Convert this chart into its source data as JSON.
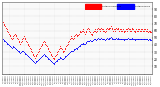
{
  "title": "",
  "red_color": "#ff0000",
  "blue_color": "#0000ff",
  "background": "#ffffff",
  "fig_bg": "#ffffff",
  "border_color": "#888888",
  "n_points": 200,
  "humidity_values": [
    72,
    70,
    68,
    66,
    64,
    62,
    60,
    58,
    56,
    54,
    52,
    50,
    48,
    50,
    52,
    54,
    56,
    54,
    52,
    50,
    48,
    46,
    44,
    42,
    44,
    46,
    48,
    50,
    52,
    50,
    48,
    46,
    44,
    42,
    40,
    38,
    36,
    34,
    32,
    30,
    28,
    26,
    24,
    22,
    24,
    26,
    28,
    30,
    32,
    34,
    36,
    38,
    40,
    42,
    44,
    46,
    44,
    42,
    40,
    38,
    36,
    34,
    32,
    30,
    28,
    26,
    24,
    22,
    20,
    22,
    24,
    26,
    28,
    30,
    32,
    34,
    36,
    38,
    36,
    34,
    32,
    30,
    32,
    34,
    36,
    38,
    40,
    42,
    44,
    46,
    48,
    50,
    52,
    50,
    48,
    50,
    52,
    54,
    56,
    54,
    52,
    54,
    56,
    58,
    60,
    58,
    60,
    62,
    60,
    58,
    56,
    58,
    60,
    62,
    64,
    62,
    60,
    58,
    56,
    54,
    56,
    58,
    60,
    62,
    60,
    58,
    60,
    62,
    64,
    62,
    60,
    62,
    64,
    62,
    60,
    62,
    60,
    58,
    60,
    62,
    64,
    62,
    64,
    62,
    64,
    66,
    64,
    62,
    60,
    62,
    60,
    62,
    64,
    62,
    64,
    62,
    60,
    62,
    60,
    62,
    60,
    62,
    60,
    58,
    60,
    62,
    60,
    62,
    64,
    62,
    60,
    62,
    60,
    62,
    64,
    62,
    60,
    58,
    60,
    62,
    60,
    62,
    60,
    62,
    60,
    62,
    60,
    62,
    60,
    62,
    60,
    62,
    60,
    62,
    60,
    58,
    60,
    58,
    60,
    58
  ],
  "temp_values": [
    48,
    47,
    46,
    45,
    44,
    43,
    42,
    41,
    40,
    39,
    38,
    37,
    36,
    37,
    38,
    37,
    36,
    35,
    34,
    33,
    32,
    31,
    30,
    29,
    30,
    31,
    32,
    31,
    30,
    29,
    28,
    27,
    26,
    25,
    24,
    23,
    22,
    21,
    20,
    19,
    18,
    17,
    16,
    15,
    16,
    17,
    18,
    19,
    20,
    21,
    22,
    23,
    24,
    25,
    26,
    27,
    26,
    25,
    24,
    23,
    22,
    21,
    20,
    19,
    18,
    17,
    16,
    15,
    14,
    15,
    16,
    17,
    18,
    19,
    20,
    21,
    22,
    23,
    22,
    21,
    20,
    21,
    22,
    23,
    24,
    25,
    26,
    27,
    28,
    29,
    30,
    31,
    32,
    31,
    32,
    33,
    34,
    35,
    36,
    35,
    36,
    37,
    38,
    39,
    40,
    41,
    42,
    43,
    42,
    41,
    42,
    43,
    44,
    45,
    46,
    45,
    46,
    47,
    46,
    45,
    46,
    47,
    48,
    49,
    48,
    47,
    48,
    49,
    50,
    49,
    48,
    49,
    50,
    49,
    48,
    49,
    48,
    47,
    48,
    49,
    50,
    49,
    50,
    49,
    50,
    51,
    50,
    49,
    48,
    49,
    48,
    49,
    50,
    49,
    50,
    49,
    48,
    49,
    48,
    49,
    48,
    49,
    48,
    47,
    48,
    49,
    48,
    49,
    50,
    49,
    48,
    49,
    48,
    49,
    50,
    49,
    48,
    47,
    48,
    49,
    48,
    49,
    48,
    49,
    48,
    49,
    48,
    49,
    48,
    49,
    48,
    49,
    48,
    49,
    48,
    47,
    48,
    47,
    48,
    47
  ],
  "ylim": [
    0,
    100
  ],
  "ytick_vals": [
    10,
    20,
    30,
    40,
    50,
    60,
    70,
    80,
    90
  ],
  "n_xticks": 80,
  "legend_red_label": "Outdoor Humidity",
  "legend_blue_label": "Outdoor Temp"
}
